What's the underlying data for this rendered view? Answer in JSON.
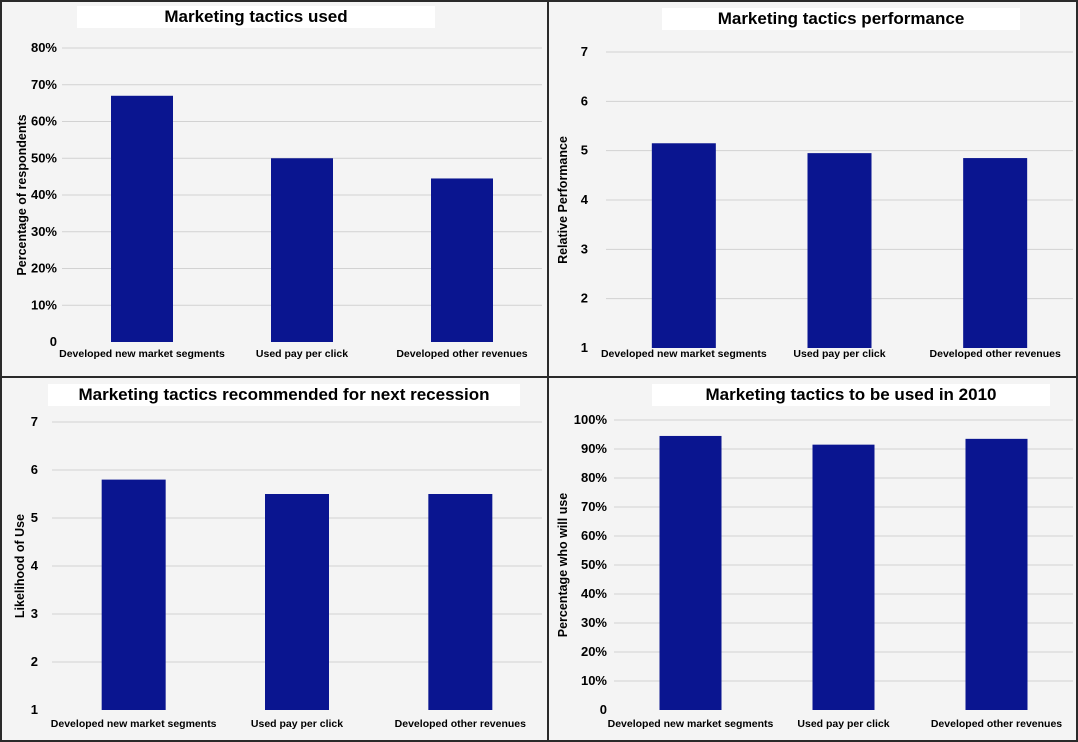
{
  "colors": {
    "bar": "#0a1590",
    "grid": "#d2d2d2",
    "panel_bg": "#f4f4f4"
  },
  "chart_data": [
    {
      "type": "bar",
      "title": "Marketing tactics used",
      "ylabel": "Percentage of respondents",
      "xlabel": "",
      "categories": [
        "Developed new market segments",
        "Used pay per click",
        "Developed other revenues"
      ],
      "values": [
        67,
        50,
        44.5
      ],
      "ylim": [
        0,
        80
      ],
      "yticks": [
        0,
        10,
        20,
        30,
        40,
        50,
        60,
        70,
        80
      ],
      "ytick_labels": [
        "0",
        "10%",
        "20%",
        "30%",
        "40%",
        "50%",
        "60%",
        "70%",
        "80%"
      ],
      "grid": true,
      "legend": "none"
    },
    {
      "type": "bar",
      "title": "Marketing tactics performance",
      "ylabel": "Relative Performance",
      "xlabel": "",
      "categories": [
        "Developed new market segments",
        "Used pay per click",
        "Developed other revenues"
      ],
      "values": [
        5.15,
        4.95,
        4.85
      ],
      "ylim": [
        1,
        7
      ],
      "yticks": [
        1,
        2,
        3,
        4,
        5,
        6,
        7
      ],
      "ytick_labels": [
        "1",
        "2",
        "3",
        "4",
        "5",
        "6",
        "7"
      ],
      "grid": true,
      "legend": "none"
    },
    {
      "type": "bar",
      "title": "Marketing tactics recommended for next recession",
      "ylabel": "Likelihood of Use",
      "xlabel": "",
      "categories": [
        "Developed new market segments",
        "Used pay per click",
        "Developed other revenues"
      ],
      "values": [
        5.8,
        5.5,
        5.5
      ],
      "ylim": [
        1,
        7
      ],
      "yticks": [
        1,
        2,
        3,
        4,
        5,
        6,
        7
      ],
      "ytick_labels": [
        "1",
        "2",
        "3",
        "4",
        "5",
        "6",
        "7"
      ],
      "grid": true,
      "legend": "none"
    },
    {
      "type": "bar",
      "title": "Marketing tactics to be used in 2010",
      "ylabel": "Percentage who will use",
      "xlabel": "",
      "categories": [
        "Developed new market segments",
        "Used pay per click",
        "Developed other revenues"
      ],
      "values": [
        94.5,
        91.5,
        93.5
      ],
      "ylim": [
        0,
        100
      ],
      "yticks": [
        0,
        10,
        20,
        30,
        40,
        50,
        60,
        70,
        80,
        90,
        100
      ],
      "ytick_labels": [
        "0",
        "10%",
        "20%",
        "30%",
        "40%",
        "50%",
        "60%",
        "70%",
        "80%",
        "90%",
        "100%"
      ],
      "grid": true,
      "legend": "none"
    }
  ]
}
